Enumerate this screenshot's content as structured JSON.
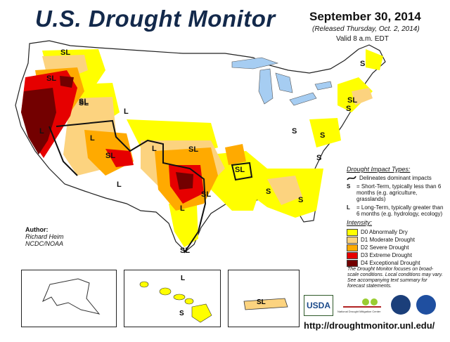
{
  "header": {
    "title": "U.S. Drought Monitor",
    "date": "September 30, 2014",
    "released": "(Released Thursday, Oct. 2, 2014)",
    "valid": "Valid 8 a.m. EDT"
  },
  "impact_legend": {
    "title": "Drought Impact Types:",
    "delineates": "Delineates dominant impacts",
    "s_key": "S",
    "s_text": "= Short-Term, typically less than 6 months (e.g. agriculture, grasslands)",
    "l_key": "L",
    "l_text": "= Long-Term, typically greater than 6 months (e.g. hydrology, ecology)"
  },
  "intensity_legend": {
    "title": "Intensity:",
    "items": [
      {
        "label": "D0 Abnormally Dry",
        "color": "#ffff00"
      },
      {
        "label": "D1 Moderate Drought",
        "color": "#fcd37f"
      },
      {
        "label": "D2 Severe Drought",
        "color": "#ffaa00"
      },
      {
        "label": "D3 Extreme Drought",
        "color": "#e60000"
      },
      {
        "label": "D4 Exceptional Drought",
        "color": "#730000"
      }
    ]
  },
  "author": {
    "label": "Author:",
    "name": "Richard Heim",
    "org": "NCDC/NOAA"
  },
  "note": "The Drought Monitor focuses on broad-scale conditions. Local conditions may vary. See accompanying text summary for forecast statements.",
  "url": "http://droughtmonitor.unl.edu/",
  "map_labels": {
    "sl": "SL",
    "s": "S",
    "l": "L"
  },
  "logos": {
    "usda": "USDA",
    "ndmc": "National Drought Mitigation Center"
  },
  "colors": {
    "state_line": "#555555",
    "lakes": "#a6cdf2",
    "d0": "#ffff00",
    "d1": "#fcd37f",
    "d2": "#ffaa00",
    "d3": "#e60000",
    "d4": "#730000"
  }
}
